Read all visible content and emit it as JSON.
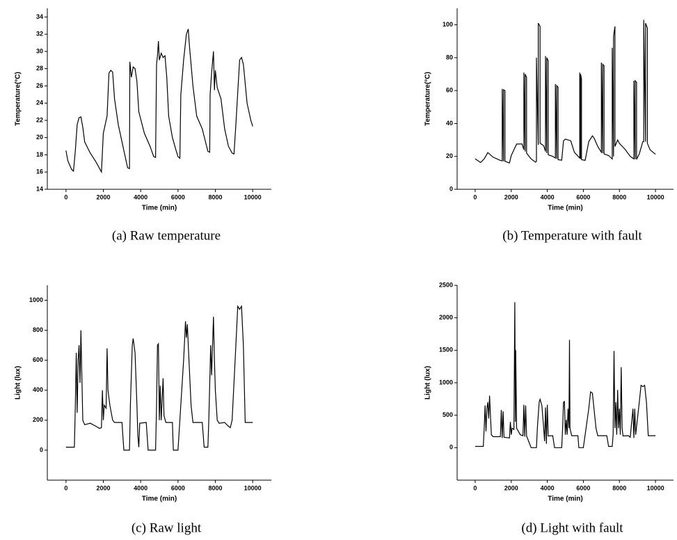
{
  "chart_data": [
    {
      "type": "line",
      "caption": "(a) Raw temperature",
      "x_label": "Time (min)",
      "y_label": "Temperature(°C)",
      "color": "#000000",
      "xlim": [
        -1000,
        11000
      ],
      "xticks": [
        0,
        2000,
        4000,
        6000,
        8000,
        10000
      ],
      "ylim": [
        14,
        35
      ],
      "yticks": [
        14,
        16,
        18,
        20,
        22,
        24,
        26,
        28,
        30,
        32,
        34
      ],
      "x": [
        0,
        100,
        300,
        400,
        500,
        600,
        700,
        800,
        900,
        1000,
        1300,
        1600,
        1900,
        2000,
        2200,
        2300,
        2400,
        2500,
        2600,
        2800,
        3100,
        3300,
        3400,
        3420,
        3500,
        3600,
        3700,
        3800,
        3900,
        4200,
        4500,
        4700,
        4800,
        4850,
        4900,
        4950,
        5000,
        5100,
        5200,
        5300,
        5400,
        5500,
        5700,
        5900,
        6000,
        6100,
        6150,
        6300,
        6450,
        6550,
        6600,
        6800,
        7000,
        7300,
        7600,
        7700,
        7720,
        7800,
        7900,
        7950,
        8000,
        8100,
        8300,
        8500,
        8700,
        8900,
        9000,
        9100,
        9300,
        9400,
        9500,
        9700,
        9900,
        10000
      ],
      "values": [
        18.5,
        17.3,
        16.3,
        16.1,
        18.5,
        21.5,
        22.3,
        22.4,
        21.2,
        19.5,
        18.2,
        17.2,
        16.0,
        20.5,
        22.5,
        27.5,
        27.8,
        27.6,
        24.5,
        21.5,
        18.5,
        16.5,
        16.4,
        28.8,
        27.0,
        28.2,
        28.0,
        26.5,
        23.0,
        20.5,
        19.0,
        17.8,
        17.7,
        28.5,
        29.5,
        31.2,
        29.0,
        29.8,
        29.3,
        29.5,
        27.0,
        22.5,
        20.0,
        18.5,
        17.8,
        17.6,
        25.0,
        29.0,
        32.0,
        32.6,
        31.0,
        26.0,
        22.5,
        21.0,
        18.4,
        18.3,
        25.0,
        27.5,
        30.0,
        25.5,
        27.8,
        25.8,
        24.5,
        21.0,
        19.0,
        18.2,
        18.1,
        21.5,
        29.0,
        29.3,
        28.5,
        24.0,
        22.0,
        21.3
      ]
    },
    {
      "type": "line",
      "caption": "(b) Temperature with fault",
      "x_label": "Time (min)",
      "y_label": "Temperature(°C)",
      "color": "#000000",
      "xlim": [
        -1000,
        11000
      ],
      "xticks": [
        0,
        2000,
        4000,
        6000,
        8000,
        10000
      ],
      "ylim": [
        0,
        110
      ],
      "yticks": [
        0,
        20,
        40,
        60,
        80,
        100
      ],
      "x": [
        0,
        300,
        500,
        700,
        1000,
        1400,
        1500,
        1500,
        1575,
        1575,
        1650,
        1650,
        1900,
        2000,
        2300,
        2600,
        2700,
        2700,
        2775,
        2775,
        2850,
        2850,
        3100,
        3350,
        3400,
        3400,
        3500,
        3500,
        3600,
        3600,
        3800,
        3900,
        3900,
        3975,
        3975,
        4050,
        4050,
        4300,
        4450,
        4450,
        4525,
        4525,
        4600,
        4600,
        4800,
        4900,
        5000,
        5300,
        5500,
        5800,
        5800,
        5850,
        5850,
        5900,
        5900,
        6100,
        6300,
        6500,
        6600,
        6800,
        7000,
        7000,
        7075,
        7075,
        7150,
        7150,
        7400,
        7600,
        7600,
        7675,
        7675,
        7750,
        7750,
        7900,
        8000,
        8300,
        8600,
        8800,
        8800,
        8875,
        8875,
        8950,
        8950,
        9100,
        9300,
        9350,
        9350,
        9450,
        9450,
        9550,
        9550,
        9700,
        10000
      ],
      "values": [
        18.5,
        16.3,
        18.5,
        22.3,
        19.5,
        17.5,
        17.3,
        61,
        17,
        60.5,
        60,
        17,
        16,
        20.5,
        27.5,
        27.6,
        24,
        71,
        23,
        70,
        68,
        22,
        18.5,
        16.5,
        17,
        80,
        27,
        101,
        99,
        28,
        26.5,
        23,
        81,
        22,
        80,
        78,
        21,
        20,
        19,
        64,
        18.5,
        63,
        62,
        18,
        17.7,
        29.5,
        30.5,
        29.5,
        22.5,
        19,
        71,
        18.5,
        70,
        67,
        18,
        17.6,
        29,
        32.5,
        31,
        26,
        22.5,
        77,
        22,
        76,
        75,
        21.5,
        20.5,
        18.4,
        86,
        20,
        93,
        99,
        26,
        30,
        27.8,
        24.5,
        20,
        18.5,
        66,
        18.3,
        66,
        65,
        18.2,
        21.5,
        29,
        29,
        103,
        29,
        101,
        98,
        28,
        24,
        21.3
      ]
    },
    {
      "type": "line",
      "caption": "(c) Raw light",
      "x_label": "Time (min)",
      "y_label": "Light (lux)",
      "color": "#000000",
      "xlim": [
        -1000,
        11000
      ],
      "xticks": [
        0,
        2000,
        4000,
        6000,
        8000,
        10000
      ],
      "ylim": [
        -200,
        1100
      ],
      "yticks": [
        0,
        200,
        400,
        600,
        800,
        1000
      ],
      "x": [
        0,
        300,
        450,
        500,
        550,
        600,
        650,
        700,
        750,
        800,
        850,
        900,
        1000,
        1300,
        1600,
        1800,
        1900,
        1950,
        2000,
        2050,
        2150,
        2200,
        2250,
        2350,
        2500,
        2600,
        3000,
        3100,
        3300,
        3400,
        3450,
        3550,
        3600,
        3700,
        3800,
        3850,
        3900,
        3950,
        4300,
        4400,
        4800,
        4850,
        4900,
        4950,
        5000,
        5050,
        5100,
        5200,
        5250,
        5350,
        5700,
        5750,
        6000,
        6100,
        6300,
        6400,
        6450,
        6500,
        6550,
        6700,
        6800,
        7300,
        7400,
        7600,
        7650,
        7750,
        7800,
        7900,
        7950,
        8000,
        8100,
        8200,
        8500,
        8700,
        8800,
        8900,
        9100,
        9200,
        9300,
        9400,
        9500,
        9600,
        10000
      ],
      "values": [
        20,
        20,
        20,
        300,
        650,
        250,
        600,
        700,
        450,
        800,
        500,
        200,
        170,
        180,
        160,
        145,
        150,
        400,
        200,
        300,
        280,
        680,
        400,
        300,
        200,
        185,
        185,
        0,
        0,
        0,
        300,
        700,
        745,
        650,
        300,
        100,
        20,
        180,
        185,
        0,
        0,
        300,
        700,
        710,
        200,
        430,
        200,
        480,
        230,
        185,
        185,
        0,
        0,
        200,
        600,
        860,
        750,
        840,
        700,
        300,
        185,
        185,
        20,
        20,
        200,
        700,
        500,
        890,
        600,
        400,
        200,
        180,
        185,
        160,
        150,
        200,
        700,
        960,
        940,
        960,
        700,
        185,
        185
      ]
    },
    {
      "type": "line",
      "caption": "(d) Light with fault",
      "x_label": "Time (min)",
      "y_label": "Light (lux)",
      "color": "#000000",
      "xlim": [
        -1000,
        11000
      ],
      "xticks": [
        0,
        2000,
        4000,
        6000,
        8000,
        10000
      ],
      "ylim": [
        -500,
        2500
      ],
      "yticks": [
        0,
        500,
        1000,
        1500,
        2000,
        2500
      ],
      "x": [
        0,
        450,
        500,
        550,
        600,
        650,
        700,
        750,
        800,
        850,
        900,
        1000,
        1400,
        1450,
        1500,
        1550,
        1600,
        1900,
        1950,
        2000,
        2050,
        2150,
        2200,
        2230,
        2250,
        2300,
        2500,
        2650,
        2700,
        2750,
        2800,
        2850,
        3100,
        3400,
        3450,
        3550,
        3600,
        3700,
        3800,
        3850,
        3900,
        3950,
        4000,
        4050,
        4300,
        4400,
        4800,
        4850,
        4900,
        4950,
        5000,
        5050,
        5100,
        5150,
        5200,
        5230,
        5260,
        5350,
        5700,
        5750,
        6000,
        6100,
        6300,
        6400,
        6500,
        6700,
        6800,
        7300,
        7400,
        7600,
        7650,
        7700,
        7750,
        7800,
        7850,
        7900,
        7950,
        8000,
        8050,
        8100,
        8150,
        8200,
        8500,
        8600,
        8750,
        8800,
        8850,
        8900,
        9100,
        9200,
        9300,
        9400,
        9500,
        9600,
        10000
      ],
      "values": [
        20,
        20,
        300,
        650,
        250,
        600,
        700,
        450,
        800,
        500,
        200,
        170,
        170,
        580,
        150,
        560,
        160,
        150,
        400,
        200,
        300,
        280,
        2240,
        400,
        1500,
        300,
        200,
        185,
        660,
        170,
        650,
        180,
        0,
        0,
        300,
        700,
        745,
        650,
        300,
        100,
        620,
        60,
        660,
        180,
        185,
        0,
        0,
        300,
        700,
        710,
        200,
        430,
        200,
        600,
        300,
        1660,
        300,
        185,
        185,
        0,
        0,
        200,
        600,
        860,
        840,
        300,
        185,
        185,
        20,
        20,
        200,
        1490,
        300,
        700,
        200,
        890,
        300,
        600,
        200,
        1240,
        300,
        180,
        185,
        160,
        600,
        150,
        600,
        200,
        700,
        960,
        940,
        960,
        700,
        185,
        185
      ]
    }
  ]
}
